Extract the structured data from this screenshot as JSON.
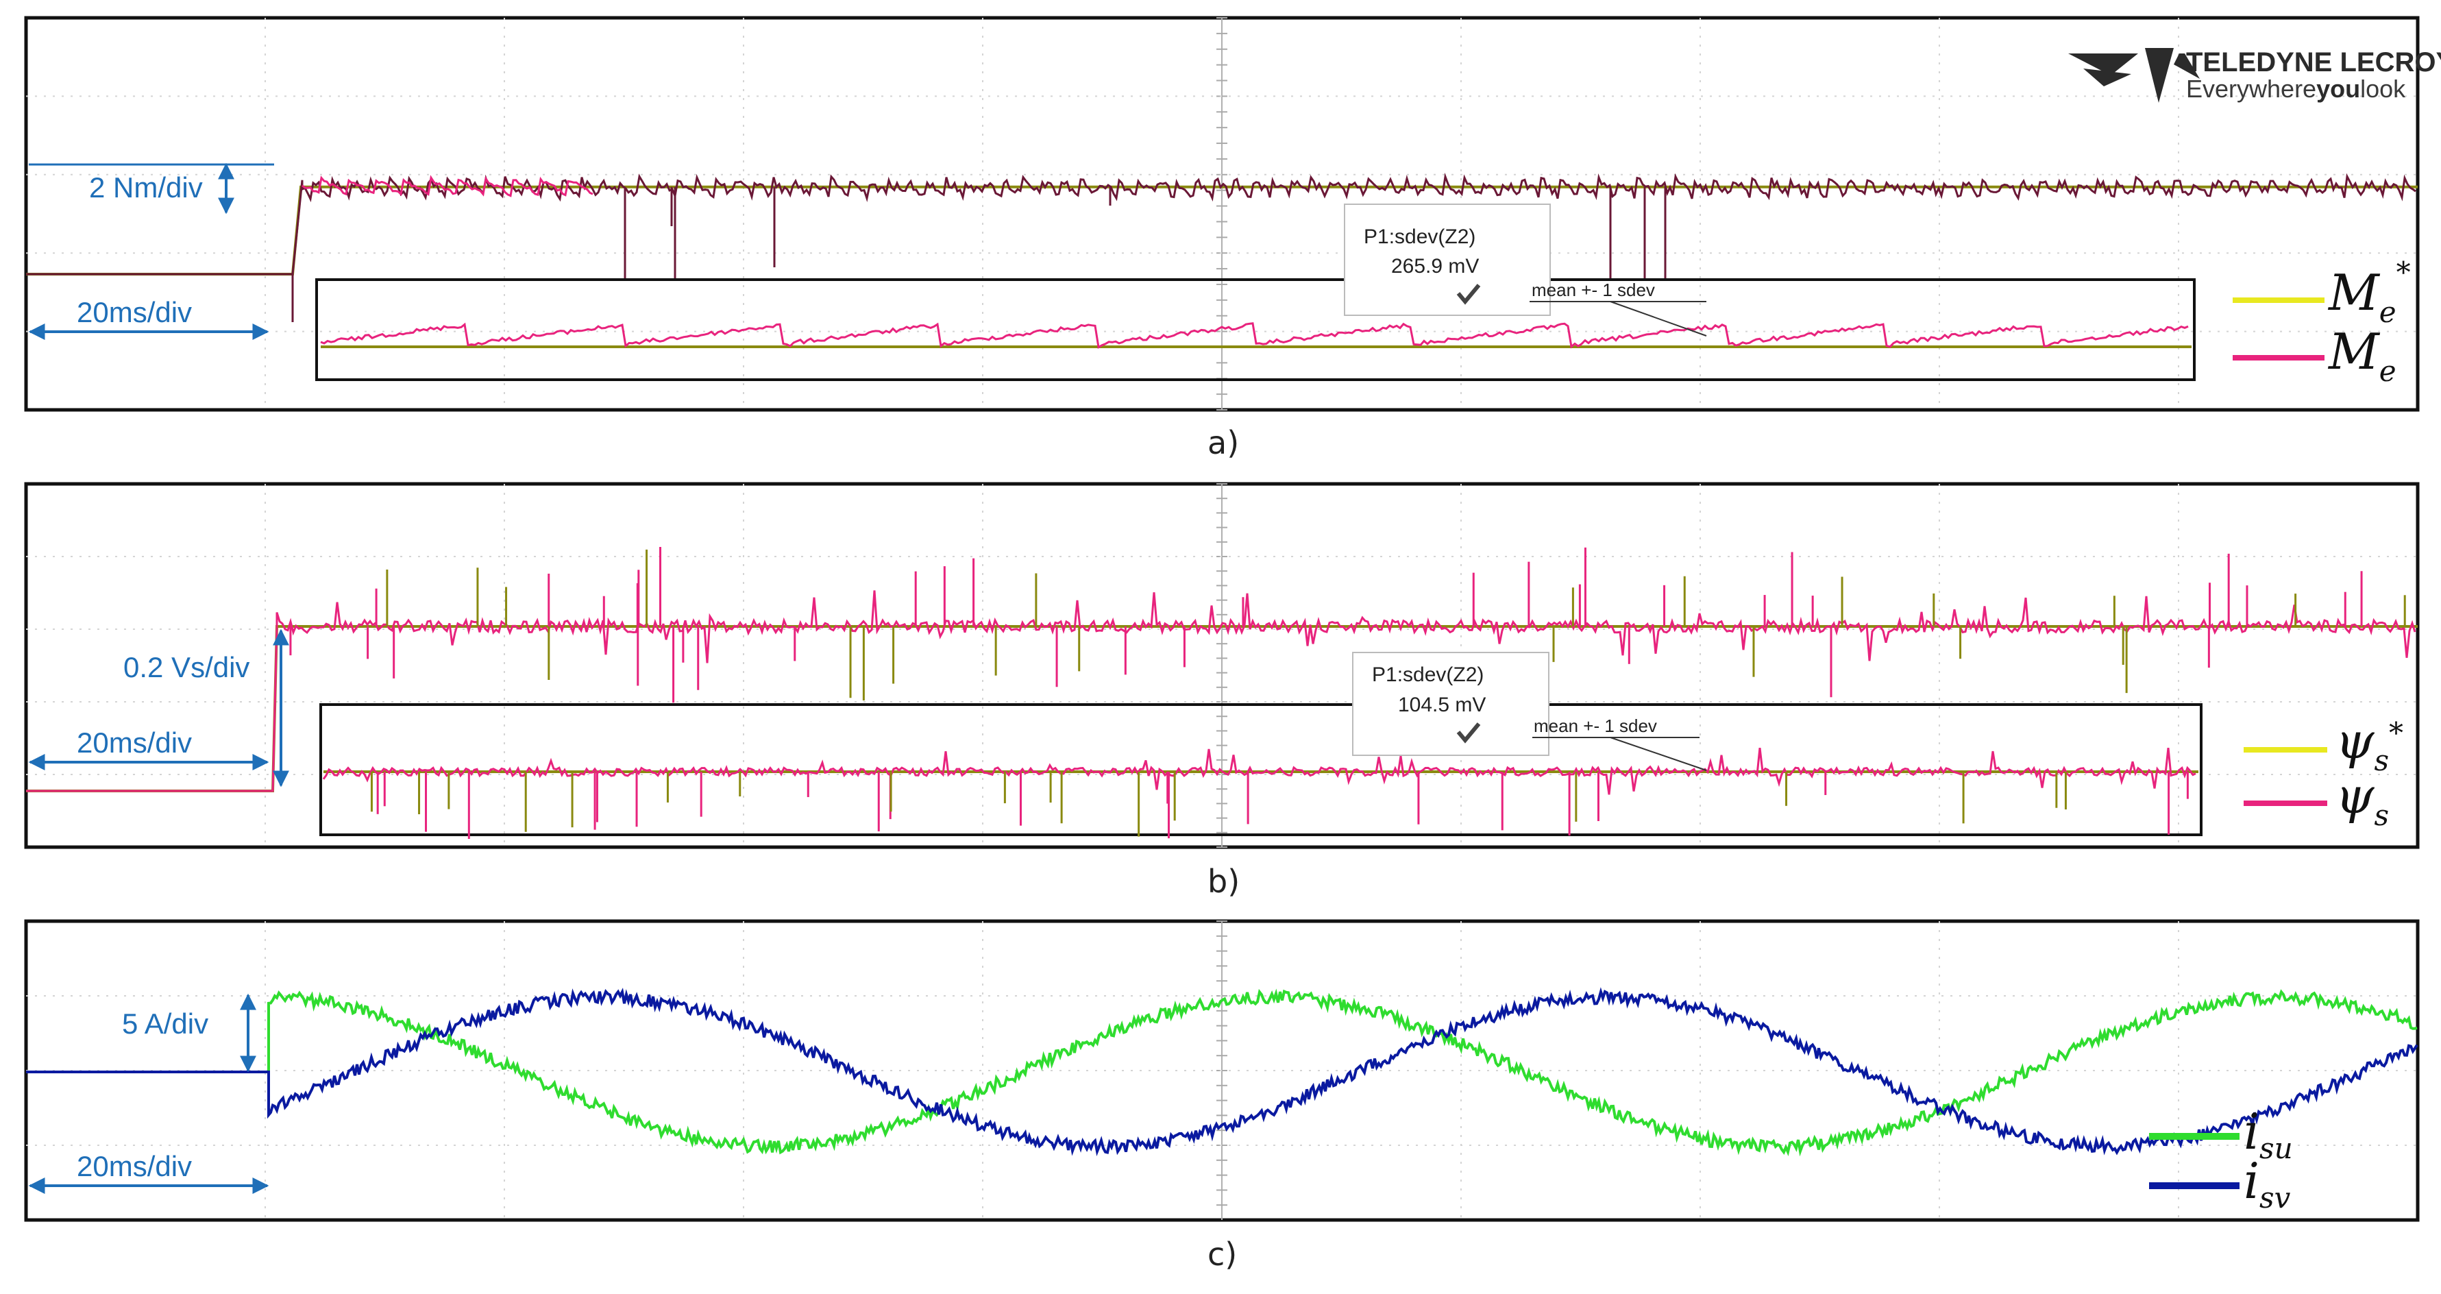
{
  "brand": {
    "name": "TELEDYNE LECROY",
    "tagline_pre": "Everywhere",
    "tagline_bold": "you",
    "tagline_post": "look"
  },
  "colors": {
    "reference": "#e8e820",
    "actual": "#e8237d",
    "dark_trace": "#6a1836",
    "olive_trace": "#8a8a10",
    "isu": "#2fdc2f",
    "isv": "#0a1aa0",
    "annotation": "#1f6fb8"
  },
  "chart_data": [
    {
      "panel": "a)",
      "type": "line",
      "vertical_scale": "2 Nm/div",
      "time_scale": "20ms/div",
      "series": [
        {
          "name": "M_e*",
          "symbol": "M",
          "sub": "e",
          "sup": "*",
          "role": "reference",
          "step_at_div": 2.0,
          "level_before_div": -1.0,
          "level_after_div": 0.5
        },
        {
          "name": "M_e",
          "symbol": "M",
          "sub": "e",
          "sup": "",
          "role": "actual",
          "step_at_div": 2.0,
          "level_before_div": -1.0,
          "level_after_div": 0.5,
          "noise": "ripple"
        }
      ],
      "measurement": {
        "label": "P1:sdev(Z2)",
        "value": "265.9 mV",
        "note": "mean +- 1 sdev"
      }
    },
    {
      "panel": "b)",
      "type": "line",
      "vertical_scale": "0.2 Vs/div",
      "time_scale": "20ms/div",
      "series": [
        {
          "name": "ψ_s*",
          "symbol": "ψ",
          "sub": "s",
          "sup": "*",
          "role": "reference",
          "step_at_div": 2.0,
          "level_before_div": -1.0,
          "level_after_div": 1.0
        },
        {
          "name": "ψ_s",
          "symbol": "ψ",
          "sub": "s",
          "sup": "",
          "role": "actual",
          "step_at_div": 2.0,
          "level_before_div": -1.0,
          "level_after_div": 1.0,
          "noise": "spiky"
        }
      ],
      "measurement": {
        "label": "P1:sdev(Z2)",
        "value": "104.5 mV",
        "note": "mean +- 1 sdev"
      }
    },
    {
      "panel": "c)",
      "type": "line",
      "vertical_scale": "5 A/div",
      "time_scale": "20ms/div",
      "series": [
        {
          "name": "i_su",
          "symbol": "i",
          "sub": "su",
          "sup": "",
          "role": "isu",
          "step_at_div": 2.0,
          "amplitude_div": 0.95,
          "phase_deg": 90,
          "period_div": 4.2
        },
        {
          "name": "i_sv",
          "symbol": "i",
          "sub": "sv",
          "sup": "",
          "role": "isv",
          "step_at_div": 2.0,
          "amplitude_div": 0.95,
          "phase_deg": -30,
          "period_div": 4.2
        }
      ]
    }
  ]
}
